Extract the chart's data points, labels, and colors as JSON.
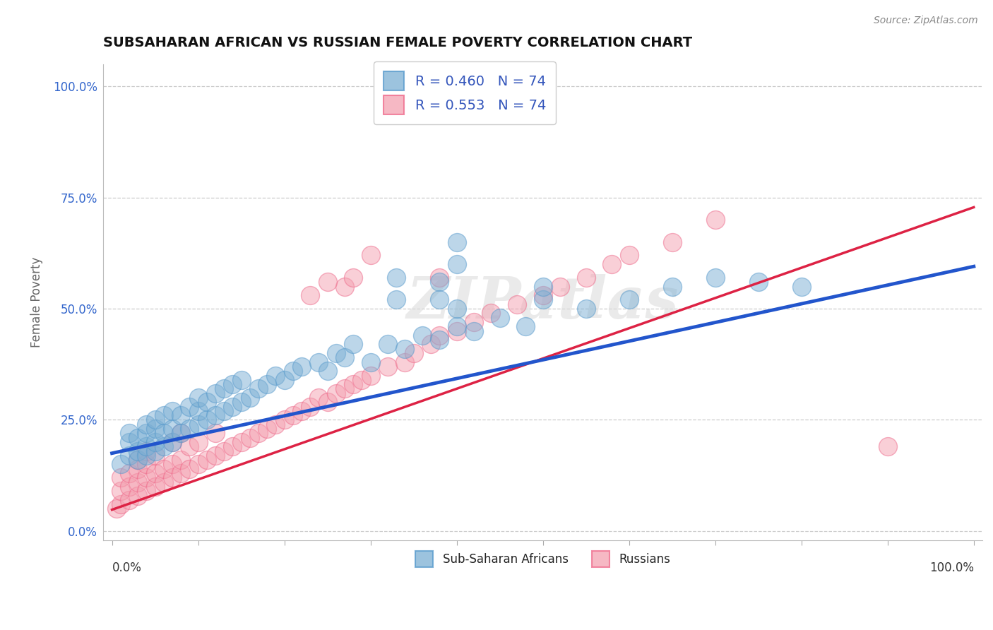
{
  "title": "SUBSAHARAN AFRICAN VS RUSSIAN FEMALE POVERTY CORRELATION CHART",
  "source": "Source: ZipAtlas.com",
  "ylabel": "Female Poverty",
  "ytick_labels": [
    "0.0%",
    "25.0%",
    "50.0%",
    "75.0%",
    "100.0%"
  ],
  "ytick_vals": [
    0.0,
    0.25,
    0.5,
    0.75,
    1.0
  ],
  "legend_blue_label": "R = 0.460   N = 74",
  "legend_pink_label": "R = 0.553   N = 74",
  "legend_sub_label": "Sub-Saharan Africans",
  "legend_rus_label": "Russians",
  "blue_color": "#7BAFD4",
  "pink_color": "#F4A0B0",
  "blue_line_color": "#2255CC",
  "pink_line_color": "#DD2244",
  "blue_edge_color": "#5599CC",
  "pink_edge_color": "#EE6688",
  "watermark": "ZIPatlas",
  "blue_slope": 0.42,
  "blue_intercept": 0.175,
  "pink_slope": 0.68,
  "pink_intercept": 0.048,
  "blue_scatter_x": [
    0.01,
    0.02,
    0.02,
    0.02,
    0.03,
    0.03,
    0.03,
    0.04,
    0.04,
    0.04,
    0.04,
    0.05,
    0.05,
    0.05,
    0.05,
    0.06,
    0.06,
    0.06,
    0.07,
    0.07,
    0.07,
    0.08,
    0.08,
    0.09,
    0.09,
    0.1,
    0.1,
    0.1,
    0.11,
    0.11,
    0.12,
    0.12,
    0.13,
    0.13,
    0.14,
    0.14,
    0.15,
    0.15,
    0.16,
    0.17,
    0.18,
    0.19,
    0.2,
    0.21,
    0.22,
    0.24,
    0.25,
    0.26,
    0.27,
    0.28,
    0.3,
    0.32,
    0.34,
    0.36,
    0.38,
    0.4,
    0.42,
    0.45,
    0.48,
    0.5,
    0.55,
    0.6,
    0.65,
    0.7,
    0.75,
    0.8,
    0.38,
    0.4,
    0.4,
    0.5,
    0.38,
    0.33,
    0.33,
    0.4
  ],
  "blue_scatter_y": [
    0.15,
    0.17,
    0.2,
    0.22,
    0.16,
    0.18,
    0.21,
    0.17,
    0.19,
    0.22,
    0.24,
    0.18,
    0.2,
    0.23,
    0.25,
    0.19,
    0.22,
    0.26,
    0.2,
    0.23,
    0.27,
    0.22,
    0.26,
    0.23,
    0.28,
    0.24,
    0.27,
    0.3,
    0.25,
    0.29,
    0.26,
    0.31,
    0.27,
    0.32,
    0.28,
    0.33,
    0.29,
    0.34,
    0.3,
    0.32,
    0.33,
    0.35,
    0.34,
    0.36,
    0.37,
    0.38,
    0.36,
    0.4,
    0.39,
    0.42,
    0.38,
    0.42,
    0.41,
    0.44,
    0.43,
    0.46,
    0.45,
    0.48,
    0.46,
    0.52,
    0.5,
    0.52,
    0.55,
    0.57,
    0.56,
    0.55,
    0.56,
    0.6,
    0.65,
    0.55,
    0.52,
    0.52,
    0.57,
    0.5
  ],
  "pink_scatter_x": [
    0.005,
    0.01,
    0.01,
    0.01,
    0.02,
    0.02,
    0.02,
    0.03,
    0.03,
    0.03,
    0.03,
    0.04,
    0.04,
    0.04,
    0.04,
    0.05,
    0.05,
    0.05,
    0.06,
    0.06,
    0.07,
    0.07,
    0.07,
    0.08,
    0.08,
    0.08,
    0.09,
    0.09,
    0.1,
    0.1,
    0.11,
    0.12,
    0.12,
    0.13,
    0.14,
    0.15,
    0.16,
    0.17,
    0.18,
    0.19,
    0.2,
    0.21,
    0.22,
    0.23,
    0.24,
    0.25,
    0.26,
    0.27,
    0.28,
    0.29,
    0.3,
    0.32,
    0.34,
    0.35,
    0.37,
    0.38,
    0.4,
    0.42,
    0.44,
    0.47,
    0.5,
    0.52,
    0.55,
    0.58,
    0.6,
    0.65,
    0.7,
    0.27,
    0.28,
    0.3,
    0.23,
    0.25,
    0.9,
    0.38
  ],
  "pink_scatter_y": [
    0.05,
    0.06,
    0.09,
    0.12,
    0.07,
    0.1,
    0.13,
    0.08,
    0.11,
    0.14,
    0.16,
    0.09,
    0.12,
    0.15,
    0.18,
    0.1,
    0.13,
    0.17,
    0.11,
    0.14,
    0.12,
    0.15,
    0.2,
    0.13,
    0.16,
    0.22,
    0.14,
    0.19,
    0.15,
    0.2,
    0.16,
    0.17,
    0.22,
    0.18,
    0.19,
    0.2,
    0.21,
    0.22,
    0.23,
    0.24,
    0.25,
    0.26,
    0.27,
    0.28,
    0.3,
    0.29,
    0.31,
    0.32,
    0.33,
    0.34,
    0.35,
    0.37,
    0.38,
    0.4,
    0.42,
    0.44,
    0.45,
    0.47,
    0.49,
    0.51,
    0.53,
    0.55,
    0.57,
    0.6,
    0.62,
    0.65,
    0.7,
    0.55,
    0.57,
    0.62,
    0.53,
    0.56,
    0.19,
    0.57
  ]
}
